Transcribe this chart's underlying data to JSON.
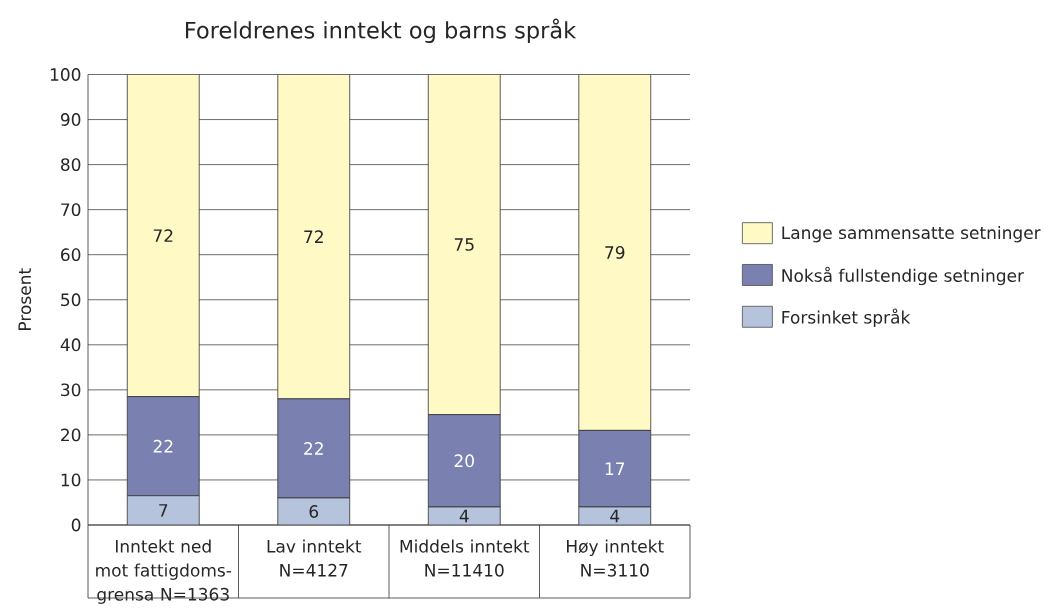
{
  "chart_data": {
    "type": "bar",
    "stacked": true,
    "title": "Foreldrenes inntekt og barns språk",
    "ylabel": "Prosent",
    "categories": [
      "Inntekt ned mot fattigdoms-grensa N=1363",
      "Lav inntekt N=4127",
      "Middels inntekt N=11410",
      "Høy inntekt N=3110"
    ],
    "series": [
      {
        "name": "Forsinket språk",
        "color": "#b5c4dc",
        "values": [
          6.5,
          6,
          4,
          4
        ],
        "value_labels": [
          "7",
          "6",
          "4",
          "4"
        ]
      },
      {
        "name": "Nokså fullstendige setninger",
        "color": "#7a80b0",
        "values": [
          22,
          22,
          20.5,
          17
        ],
        "value_labels": [
          "22",
          "22",
          "20",
          "17"
        ]
      },
      {
        "name": "Lange sammensatte setninger",
        "color": "#fff9c5",
        "values": [
          71.5,
          72,
          75.5,
          79
        ],
        "value_labels": [
          "72",
          "72",
          "75",
          "79"
        ]
      }
    ],
    "ylim": [
      0,
      100
    ],
    "yticks": [
      0,
      10,
      20,
      30,
      40,
      50,
      60,
      70,
      80,
      90,
      100
    ],
    "grid": "y",
    "legend": "right"
  }
}
